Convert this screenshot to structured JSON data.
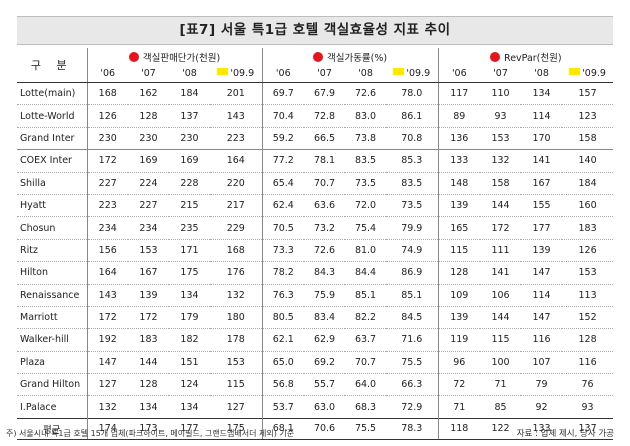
{
  "title": "[표7] 서울 특1급 호텔 객실효율성 지표 추이",
  "corner_label": "구 분",
  "groups": [
    {
      "label": "객실판매단가(천원)",
      "color": "#e8141b"
    },
    {
      "label": "객실가동률(%)",
      "color": "#e8141b"
    },
    {
      "label": "RevPar(천원)",
      "color": "#e8141b"
    }
  ],
  "years": [
    "'06",
    "'07",
    "'08",
    "'09.9"
  ],
  "highlight_color": "#ffe800",
  "rows": [
    {
      "name": "Lotte(main)",
      "values": [
        "168",
        "162",
        "184",
        "201",
        "69.7",
        "67.9",
        "72.6",
        "78.0",
        "117",
        "110",
        "134",
        "157"
      ]
    },
    {
      "name": "Lotte-World",
      "values": [
        "126",
        "128",
        "137",
        "143",
        "70.4",
        "72.8",
        "83.0",
        "86.1",
        "89",
        "93",
        "114",
        "123"
      ]
    },
    {
      "name": "Grand Inter",
      "values": [
        "230",
        "230",
        "230",
        "223",
        "59.2",
        "66.5",
        "73.8",
        "70.8",
        "136",
        "153",
        "170",
        "158"
      ]
    },
    {
      "name": "COEX Inter",
      "values": [
        "172",
        "169",
        "169",
        "164",
        "77.2",
        "78.1",
        "83.5",
        "85.3",
        "133",
        "132",
        "141",
        "140"
      ]
    },
    {
      "name": "Shilla",
      "values": [
        "227",
        "224",
        "228",
        "220",
        "65.4",
        "70.7",
        "73.5",
        "83.5",
        "148",
        "158",
        "167",
        "184"
      ]
    },
    {
      "name": "Hyatt",
      "values": [
        "223",
        "227",
        "215",
        "217",
        "62.4",
        "63.6",
        "72.0",
        "73.5",
        "139",
        "144",
        "155",
        "160"
      ]
    },
    {
      "name": "Chosun",
      "values": [
        "234",
        "234",
        "235",
        "229",
        "70.5",
        "73.2",
        "75.4",
        "79.9",
        "165",
        "172",
        "177",
        "183"
      ]
    },
    {
      "name": "Ritz",
      "values": [
        "156",
        "153",
        "171",
        "168",
        "73.3",
        "72.6",
        "81.0",
        "74.9",
        "115",
        "111",
        "139",
        "126"
      ]
    },
    {
      "name": "Hilton",
      "values": [
        "164",
        "167",
        "175",
        "176",
        "78.2",
        "84.3",
        "84.4",
        "86.9",
        "128",
        "141",
        "147",
        "153"
      ]
    },
    {
      "name": "Renaissance",
      "values": [
        "143",
        "139",
        "134",
        "132",
        "76.3",
        "75.9",
        "85.1",
        "85.1",
        "109",
        "106",
        "114",
        "113"
      ]
    },
    {
      "name": "Marriott",
      "values": [
        "172",
        "172",
        "179",
        "180",
        "80.5",
        "83.4",
        "82.2",
        "84.5",
        "139",
        "144",
        "147",
        "152"
      ]
    },
    {
      "name": "Walker-hill",
      "values": [
        "192",
        "183",
        "182",
        "178",
        "62.1",
        "62.9",
        "63.7",
        "71.6",
        "119",
        "115",
        "116",
        "128"
      ]
    },
    {
      "name": "Plaza",
      "values": [
        "147",
        "144",
        "151",
        "153",
        "65.0",
        "69.2",
        "70.7",
        "75.5",
        "96",
        "100",
        "107",
        "116"
      ]
    },
    {
      "name": "Grand Hilton",
      "values": [
        "127",
        "128",
        "124",
        "115",
        "56.8",
        "55.7",
        "64.0",
        "66.3",
        "72",
        "71",
        "79",
        "76"
      ]
    },
    {
      "name": "I.Palace",
      "values": [
        "132",
        "134",
        "134",
        "127",
        "53.7",
        "63.0",
        "68.3",
        "72.9",
        "71",
        "85",
        "92",
        "93"
      ]
    }
  ],
  "average": {
    "name": "평균",
    "values": [
      "174",
      "173",
      "177",
      "175",
      "68.1",
      "70.6",
      "75.5",
      "78.3",
      "118",
      "122",
      "133",
      "137"
    ]
  },
  "footnote": "주) 서울시내 특1급 호텔 15개 업체(파크하이트, 메이필드, 그랜드앰배서더 제외) 기준",
  "source": "자료 : 업체 제시, 당사 가공"
}
